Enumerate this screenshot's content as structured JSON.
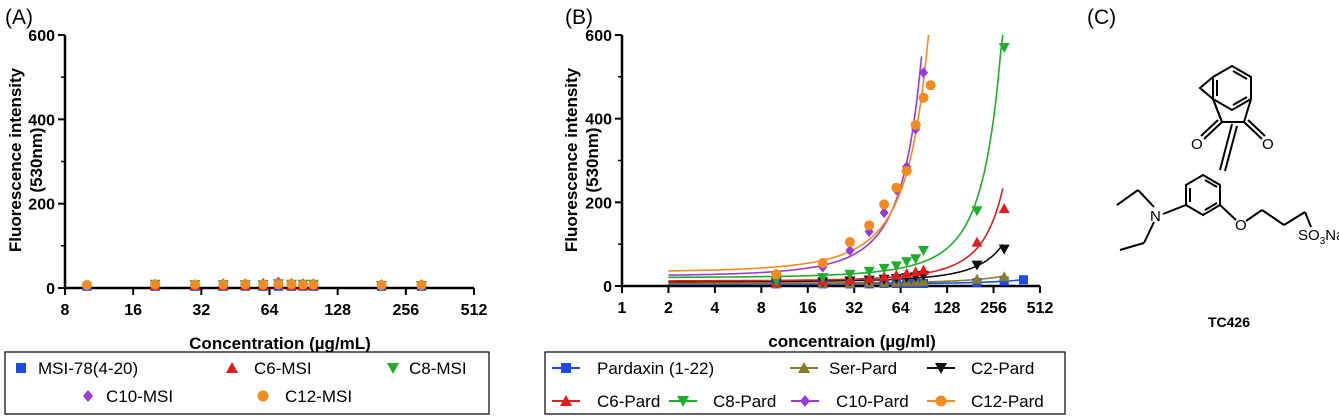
{
  "panels": {
    "a": "(A)",
    "b": "(B)",
    "c": "(C)"
  },
  "colors": {
    "blue": "#1b4de6",
    "red": "#e11d1d",
    "green": "#1fae2a",
    "purple": "#9b3bd6",
    "orange": "#f58a1f",
    "olive": "#8b7a2b",
    "black": "#111111"
  },
  "chart_data": [
    {
      "type": "scatter",
      "panel": "(A)",
      "xscale": "log2",
      "xlim": [
        8,
        512
      ],
      "ylim": [
        0,
        600
      ],
      "xticks": [
        "8",
        "16",
        "32",
        "64",
        "128",
        "256",
        "512"
      ],
      "yticks": [
        "0",
        "200",
        "400",
        "600"
      ],
      "xlabel": "Concentration (µg/mL)",
      "ylabel": "Fluorescence intensity",
      "ylabel2": "(530nm)",
      "legend_position": "bottom",
      "series": [
        {
          "name": "MSI-78(4-20)",
          "marker": "square",
          "color": "#1b4de6",
          "x": [
            10,
            20,
            30,
            40,
            50,
            60,
            70,
            80,
            90,
            100,
            200,
            300
          ],
          "y": [
            4,
            4,
            4,
            4,
            4,
            4,
            4,
            4,
            4,
            4,
            4,
            4
          ]
        },
        {
          "name": "C6-MSI",
          "marker": "triangle",
          "color": "#e11d1d",
          "x": [
            20,
            30,
            40,
            50,
            60,
            70,
            80,
            90,
            100
          ],
          "y": [
            6,
            6,
            6,
            6,
            6,
            8,
            6,
            6,
            6
          ]
        },
        {
          "name": "C8-MSI",
          "marker": "triangle-down",
          "color": "#1fae2a",
          "x": [
            20,
            30,
            40,
            50,
            60,
            70,
            80,
            90,
            100,
            200,
            300
          ],
          "y": [
            9,
            8,
            8,
            8,
            8,
            10,
            9,
            9,
            9,
            6,
            6
          ]
        },
        {
          "name": "C10-MSI",
          "marker": "diamond",
          "color": "#9b3bd6",
          "x": [
            10,
            20,
            30,
            40,
            50,
            60,
            70,
            80,
            90,
            100,
            200,
            300
          ],
          "y": [
            6,
            9,
            8,
            10,
            10,
            11,
            14,
            11,
            10,
            10,
            8,
            8
          ]
        },
        {
          "name": "C12-MSI",
          "marker": "circle",
          "color": "#f58a1f",
          "x": [
            10,
            20,
            30,
            40,
            50,
            60,
            70,
            80,
            90,
            100,
            200,
            300
          ],
          "y": [
            7,
            8,
            8,
            8,
            9,
            8,
            9,
            9,
            8,
            8,
            7,
            7
          ]
        }
      ]
    },
    {
      "type": "scatter",
      "panel": "(B)",
      "xscale": "log2",
      "xlim": [
        1,
        512
      ],
      "ylim": [
        0,
        600
      ],
      "xticks": [
        "1",
        "2",
        "4",
        "8",
        "16",
        "32",
        "64",
        "128",
        "256",
        "512"
      ],
      "yticks": [
        "0",
        "200",
        "400",
        "600"
      ],
      "xlabel": "concentraion (µg/ml)",
      "ylabel": "Fluorescence intensity",
      "ylabel2": "(530nm)",
      "legend_position": "bottom",
      "fit_lines": true,
      "series": [
        {
          "name": "Pardaxin (1-22)",
          "marker": "square",
          "color": "#1b4de6",
          "x": [
            10,
            20,
            30,
            40,
            50,
            60,
            70,
            80,
            90,
            200,
            300,
            400
          ],
          "y": [
            5,
            5,
            5,
            5,
            6,
            6,
            6,
            6,
            6,
            8,
            12,
            15
          ]
        },
        {
          "name": "Ser-Pard",
          "marker": "triangle",
          "color": "#8b7a2b",
          "x": [
            10,
            20,
            30,
            40,
            50,
            60,
            70,
            80,
            90,
            200,
            300
          ],
          "y": [
            6,
            7,
            7,
            8,
            8,
            9,
            10,
            10,
            11,
            16,
            22
          ]
        },
        {
          "name": "C2-Pard",
          "marker": "triangle-down",
          "color": "#111111",
          "x": [
            10,
            20,
            30,
            40,
            50,
            60,
            70,
            80,
            90,
            200,
            300
          ],
          "y": [
            8,
            10,
            12,
            14,
            16,
            18,
            20,
            22,
            25,
            50,
            88
          ]
        },
        {
          "name": "C6-Pard",
          "marker": "triangle",
          "color": "#e11d1d",
          "x": [
            10,
            20,
            30,
            40,
            50,
            60,
            70,
            80,
            90,
            200,
            300
          ],
          "y": [
            8,
            12,
            15,
            18,
            22,
            26,
            30,
            34,
            38,
            105,
            185
          ]
        },
        {
          "name": "C8-Pard",
          "marker": "triangle-down",
          "color": "#1fae2a",
          "x": [
            10,
            20,
            30,
            40,
            50,
            60,
            70,
            80,
            90,
            200,
            300
          ],
          "y": [
            12,
            20,
            28,
            35,
            42,
            48,
            58,
            65,
            85,
            180,
            570
          ]
        },
        {
          "name": "C10-Pard",
          "marker": "diamond",
          "color": "#9b3bd6",
          "x": [
            10,
            20,
            30,
            40,
            50,
            60,
            70,
            80,
            90
          ],
          "y": [
            25,
            45,
            85,
            130,
            175,
            230,
            285,
            375,
            510
          ]
        },
        {
          "name": "C12-Pard",
          "marker": "circle",
          "color": "#f58a1f",
          "x": [
            10,
            20,
            30,
            40,
            50,
            60,
            70,
            80,
            90,
            100
          ],
          "y": [
            28,
            55,
            105,
            145,
            195,
            235,
            275,
            385,
            450,
            480
          ]
        }
      ]
    }
  ],
  "structure": {
    "o1": "O",
    "o2": "O",
    "o3": "O",
    "n": "N",
    "so3na_so": "SO",
    "so3na_3": "3",
    "so3na_na": "Na",
    "name": "TC426"
  }
}
